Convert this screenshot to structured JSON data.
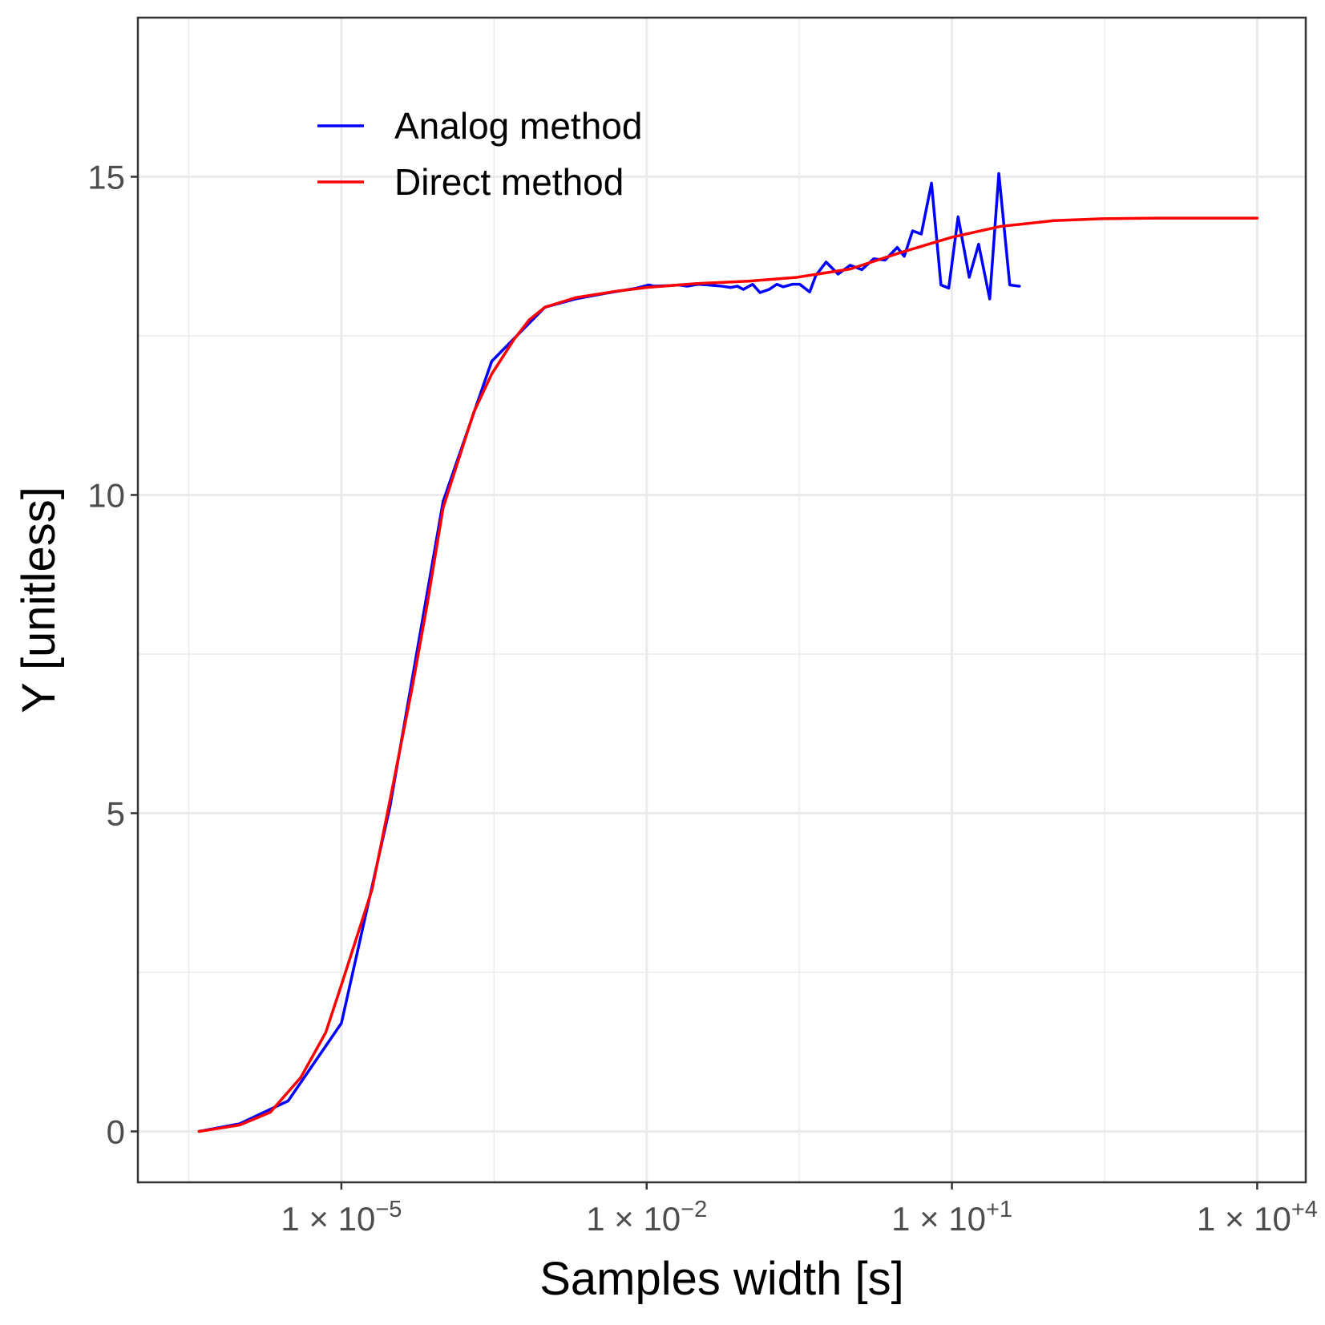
{
  "chart_data": {
    "type": "line",
    "title": "",
    "xlabel": "Samples width [s]",
    "ylabel": "Y [unitless]",
    "x_scale": "log10",
    "xlim": [
      1e-07,
      30000
    ],
    "ylim": [
      -0.8,
      17.5
    ],
    "x_ticks": [
      {
        "value": 1e-05,
        "label_base": "1 × 10",
        "label_exp": "−5"
      },
      {
        "value": 0.01,
        "label_base": "1 × 10",
        "label_exp": "−2"
      },
      {
        "value": 10,
        "label_base": "1 × 10",
        "label_exp": "+1"
      },
      {
        "value": 10000,
        "label_base": "1 × 10",
        "label_exp": "+4"
      }
    ],
    "y_ticks": [
      0,
      5,
      10,
      15
    ],
    "grid": true,
    "legend": {
      "position": "top-left inside"
    },
    "series": [
      {
        "name": "Analog method",
        "color": "#0000ff",
        "x": [
          4e-07,
          1e-06,
          3e-06,
          1e-05,
          3e-05,
          0.0001,
          0.0003,
          0.001,
          0.002,
          0.004,
          0.008,
          0.0105,
          0.0118,
          0.017,
          0.021,
          0.025,
          0.032,
          0.04,
          0.055,
          0.067,
          0.078,
          0.089,
          0.11,
          0.13,
          0.16,
          0.19,
          0.22,
          0.27,
          0.32,
          0.4,
          0.46,
          0.58,
          0.76,
          1.0,
          1.3,
          1.7,
          2.2,
          2.9,
          3.4,
          4.1,
          5.0,
          6.3,
          7.8,
          9.3,
          11.5,
          14.8,
          18.3,
          23.5,
          28.9,
          37,
          46
        ],
        "y": [
          0.0,
          0.12,
          0.48,
          1.7,
          5.1,
          9.9,
          12.1,
          12.95,
          13.08,
          13.17,
          13.25,
          13.3,
          13.28,
          13.29,
          13.3,
          13.28,
          13.31,
          13.3,
          13.28,
          13.26,
          13.28,
          13.23,
          13.31,
          13.18,
          13.23,
          13.31,
          13.27,
          13.31,
          13.31,
          13.19,
          13.45,
          13.66,
          13.47,
          13.61,
          13.54,
          13.71,
          13.69,
          13.89,
          13.75,
          14.15,
          14.1,
          14.9,
          13.3,
          13.25,
          14.37,
          13.42,
          13.94,
          13.08,
          15.05,
          13.3,
          13.28
        ]
      },
      {
        "name": "Direct method",
        "color": "#ff0000",
        "x": [
          4e-07,
          1e-06,
          2e-06,
          4e-06,
          7e-06,
          1e-05,
          2e-05,
          3e-05,
          5e-05,
          7e-05,
          0.0001,
          0.0002,
          0.0003,
          0.0005,
          0.0007,
          0.001,
          0.002,
          0.005,
          0.01,
          0.03,
          0.1,
          0.3,
          1,
          3,
          10,
          30,
          100,
          300,
          1000,
          3000,
          10000
        ],
        "y": [
          0.0,
          0.1,
          0.3,
          0.85,
          1.55,
          2.3,
          3.8,
          5.2,
          7.0,
          8.3,
          9.8,
          11.3,
          11.9,
          12.45,
          12.75,
          12.95,
          13.1,
          13.2,
          13.26,
          13.32,
          13.36,
          13.42,
          13.55,
          13.8,
          14.05,
          14.22,
          14.31,
          14.34,
          14.35,
          14.35,
          14.35
        ]
      }
    ]
  }
}
